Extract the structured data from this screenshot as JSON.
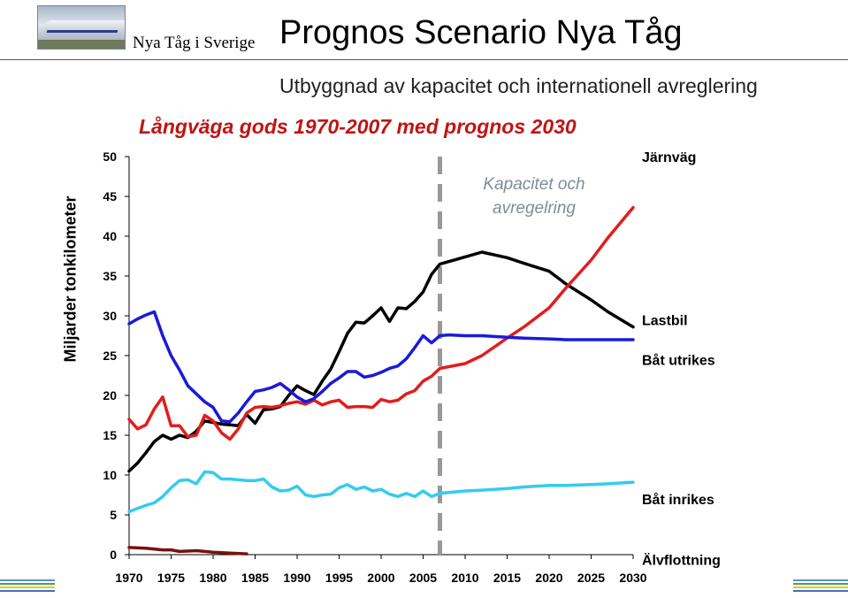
{
  "header": {
    "brand": "Nya Tåg i Sverige",
    "title": "Prognos Scenario Nya Tåg",
    "subtitle": "Utbyggnad av kapacitet och internationell avreglering"
  },
  "logo": {
    "icon": "train-photo-icon"
  },
  "footer": {
    "colors": [
      "#5b8fd4",
      "#4aa05a",
      "#f0c419",
      "#3b6fc1"
    ]
  },
  "chart_data": {
    "type": "line",
    "title": "Långväga gods 1970-2007 med prognos 2030",
    "xlabel": "",
    "ylabel": "Miljarder tonkilometer",
    "xlim": [
      1970,
      2030
    ],
    "ylim": [
      0,
      50
    ],
    "xticks": [
      1970,
      1975,
      1980,
      1985,
      1990,
      1995,
      2000,
      2005,
      2010,
      2015,
      2020,
      2025,
      2030
    ],
    "yticks": [
      0,
      5,
      10,
      15,
      20,
      25,
      30,
      35,
      40,
      45,
      50
    ],
    "grid": false,
    "annotation": {
      "text_lines": [
        "Kapacitet och",
        "avregelring"
      ],
      "x": 2007,
      "color": "#999999"
    },
    "series": [
      {
        "name": "Järnväg",
        "color": "#000000",
        "x": [
          1970,
          1971,
          1972,
          1973,
          1974,
          1975,
          1976,
          1977,
          1978,
          1979,
          1980,
          1981,
          1982,
          1983,
          1984,
          1985,
          1986,
          1987,
          1988,
          1989,
          1990,
          1991,
          1992,
          1993,
          1994,
          1995,
          1996,
          1997,
          1998,
          1999,
          2000,
          2001,
          2002,
          2003,
          2004,
          2005,
          2006,
          2007,
          2008,
          2010,
          2012,
          2015,
          2017,
          2020,
          2022,
          2025,
          2027,
          2030
        ],
        "y": [
          10.5,
          11.5,
          12.8,
          14.2,
          15.0,
          14.5,
          15.0,
          14.7,
          15.5,
          16.8,
          16.6,
          16.4,
          16.3,
          16.2,
          17.6,
          16.5,
          18.2,
          18.3,
          18.6,
          20.0,
          21.2,
          20.6,
          20.1,
          21.8,
          23.3,
          25.5,
          27.8,
          29.2,
          29.1,
          30.0,
          31.0,
          29.3,
          31.0,
          30.9,
          31.8,
          33.0,
          35.2,
          36.5,
          36.8,
          37.4,
          38.0,
          37.3,
          36.6,
          35.6,
          34.0,
          32.0,
          30.5,
          28.6
        ]
      },
      {
        "name": "Lastbil",
        "color": "#e21d1d",
        "x": [
          1970,
          1971,
          1972,
          1973,
          1974,
          1975,
          1976,
          1977,
          1978,
          1979,
          1980,
          1981,
          1982,
          1983,
          1984,
          1985,
          1986,
          1987,
          1988,
          1989,
          1990,
          1991,
          1992,
          1993,
          1994,
          1995,
          1996,
          1997,
          1998,
          1999,
          2000,
          2001,
          2002,
          2003,
          2004,
          2005,
          2006,
          2007,
          2008,
          2010,
          2012,
          2015,
          2017,
          2020,
          2022,
          2025,
          2027,
          2030
        ],
        "y": [
          17.0,
          15.8,
          16.3,
          18.3,
          19.8,
          16.2,
          16.2,
          14.8,
          15.0,
          17.5,
          16.8,
          15.3,
          14.5,
          15.8,
          17.8,
          18.5,
          18.6,
          18.5,
          18.7,
          19.0,
          19.2,
          18.9,
          19.4,
          18.8,
          19.2,
          19.4,
          18.5,
          18.6,
          18.6,
          18.5,
          19.5,
          19.2,
          19.4,
          20.2,
          20.6,
          21.8,
          22.4,
          23.4,
          23.6,
          24.0,
          25.0,
          27.2,
          28.6,
          31.0,
          33.5,
          37.0,
          39.8,
          43.6
        ]
      },
      {
        "name": "Båt utrikes",
        "color": "#1a1adb",
        "x": [
          1970,
          1971,
          1972,
          1973,
          1974,
          1975,
          1976,
          1977,
          1978,
          1979,
          1980,
          1981,
          1982,
          1983,
          1984,
          1985,
          1986,
          1987,
          1988,
          1989,
          1990,
          1991,
          1992,
          1993,
          1994,
          1995,
          1996,
          1997,
          1998,
          1999,
          2000,
          2001,
          2002,
          2003,
          2004,
          2005,
          2006,
          2007,
          2008,
          2010,
          2012,
          2015,
          2017,
          2020,
          2022,
          2025,
          2027,
          2030
        ],
        "y": [
          29.0,
          29.6,
          30.1,
          30.5,
          27.5,
          25.0,
          23.2,
          21.2,
          20.2,
          19.2,
          18.5,
          16.8,
          16.7,
          17.8,
          19.2,
          20.5,
          20.7,
          21.0,
          21.5,
          20.7,
          19.8,
          19.2,
          19.6,
          20.5,
          21.5,
          22.2,
          23.0,
          23.0,
          22.3,
          22.5,
          22.9,
          23.4,
          23.7,
          24.6,
          26.0,
          27.5,
          26.6,
          27.5,
          27.6,
          27.5,
          27.5,
          27.3,
          27.2,
          27.1,
          27.0,
          27.0,
          27.0,
          27.0
        ]
      },
      {
        "name": "Båt inrikes",
        "color": "#33ccee",
        "x": [
          1970,
          1971,
          1972,
          1973,
          1974,
          1975,
          1976,
          1977,
          1978,
          1979,
          1980,
          1981,
          1982,
          1983,
          1984,
          1985,
          1986,
          1987,
          1988,
          1989,
          1990,
          1991,
          1992,
          1993,
          1994,
          1995,
          1996,
          1997,
          1998,
          1999,
          2000,
          2001,
          2002,
          2003,
          2004,
          2005,
          2006,
          2007,
          2008,
          2010,
          2012,
          2015,
          2017,
          2020,
          2022,
          2025,
          2027,
          2030
        ],
        "y": [
          5.4,
          5.8,
          6.2,
          6.5,
          7.3,
          8.4,
          9.3,
          9.4,
          8.9,
          10.4,
          10.3,
          9.5,
          9.5,
          9.4,
          9.3,
          9.3,
          9.5,
          8.5,
          8.0,
          8.1,
          8.6,
          7.5,
          7.3,
          7.5,
          7.6,
          8.4,
          8.8,
          8.2,
          8.5,
          8.0,
          8.2,
          7.6,
          7.3,
          7.7,
          7.3,
          8.0,
          7.3,
          7.7,
          7.8,
          8.0,
          8.1,
          8.3,
          8.5,
          8.7,
          8.7,
          8.8,
          8.9,
          9.1
        ]
      },
      {
        "name": "Älvflottning",
        "color": "#7a1010",
        "x": [
          1970,
          1972,
          1974,
          1975,
          1976,
          1978,
          1980,
          1982,
          1984
        ],
        "y": [
          0.9,
          0.8,
          0.6,
          0.6,
          0.4,
          0.5,
          0.3,
          0.2,
          0.1
        ]
      }
    ]
  }
}
